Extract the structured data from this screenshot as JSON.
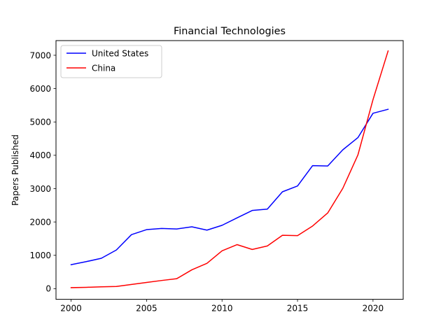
{
  "chart_data": {
    "type": "line",
    "title": "Financial Technologies",
    "xlabel": "",
    "ylabel": "Papers Published",
    "xlim": [
      1999,
      2022
    ],
    "ylim": [
      -320,
      7440
    ],
    "xticks": [
      2000,
      2005,
      2010,
      2015,
      2020
    ],
    "yticks": [
      0,
      1000,
      2000,
      3000,
      4000,
      5000,
      6000,
      7000
    ],
    "grid": false,
    "legend_position": "top-left",
    "x": [
      2000,
      2001,
      2002,
      2003,
      2004,
      2005,
      2006,
      2007,
      2008,
      2009,
      2010,
      2011,
      2012,
      2013,
      2014,
      2015,
      2016,
      2017,
      2018,
      2019,
      2020,
      2021
    ],
    "series": [
      {
        "name": "United States",
        "color": "#0000ff",
        "values": [
          720,
          810,
          910,
          1160,
          1620,
          1770,
          1805,
          1790,
          1855,
          1755,
          1900,
          2125,
          2345,
          2385,
          2905,
          3080,
          3690,
          3680,
          4165,
          4530,
          5260,
          5380
        ]
      },
      {
        "name": "China",
        "color": "#ff0000",
        "values": [
          30,
          40,
          55,
          65,
          125,
          185,
          245,
          300,
          565,
          760,
          1135,
          1320,
          1175,
          1280,
          1600,
          1590,
          1880,
          2270,
          3010,
          4010,
          5670,
          7130
        ]
      }
    ]
  }
}
